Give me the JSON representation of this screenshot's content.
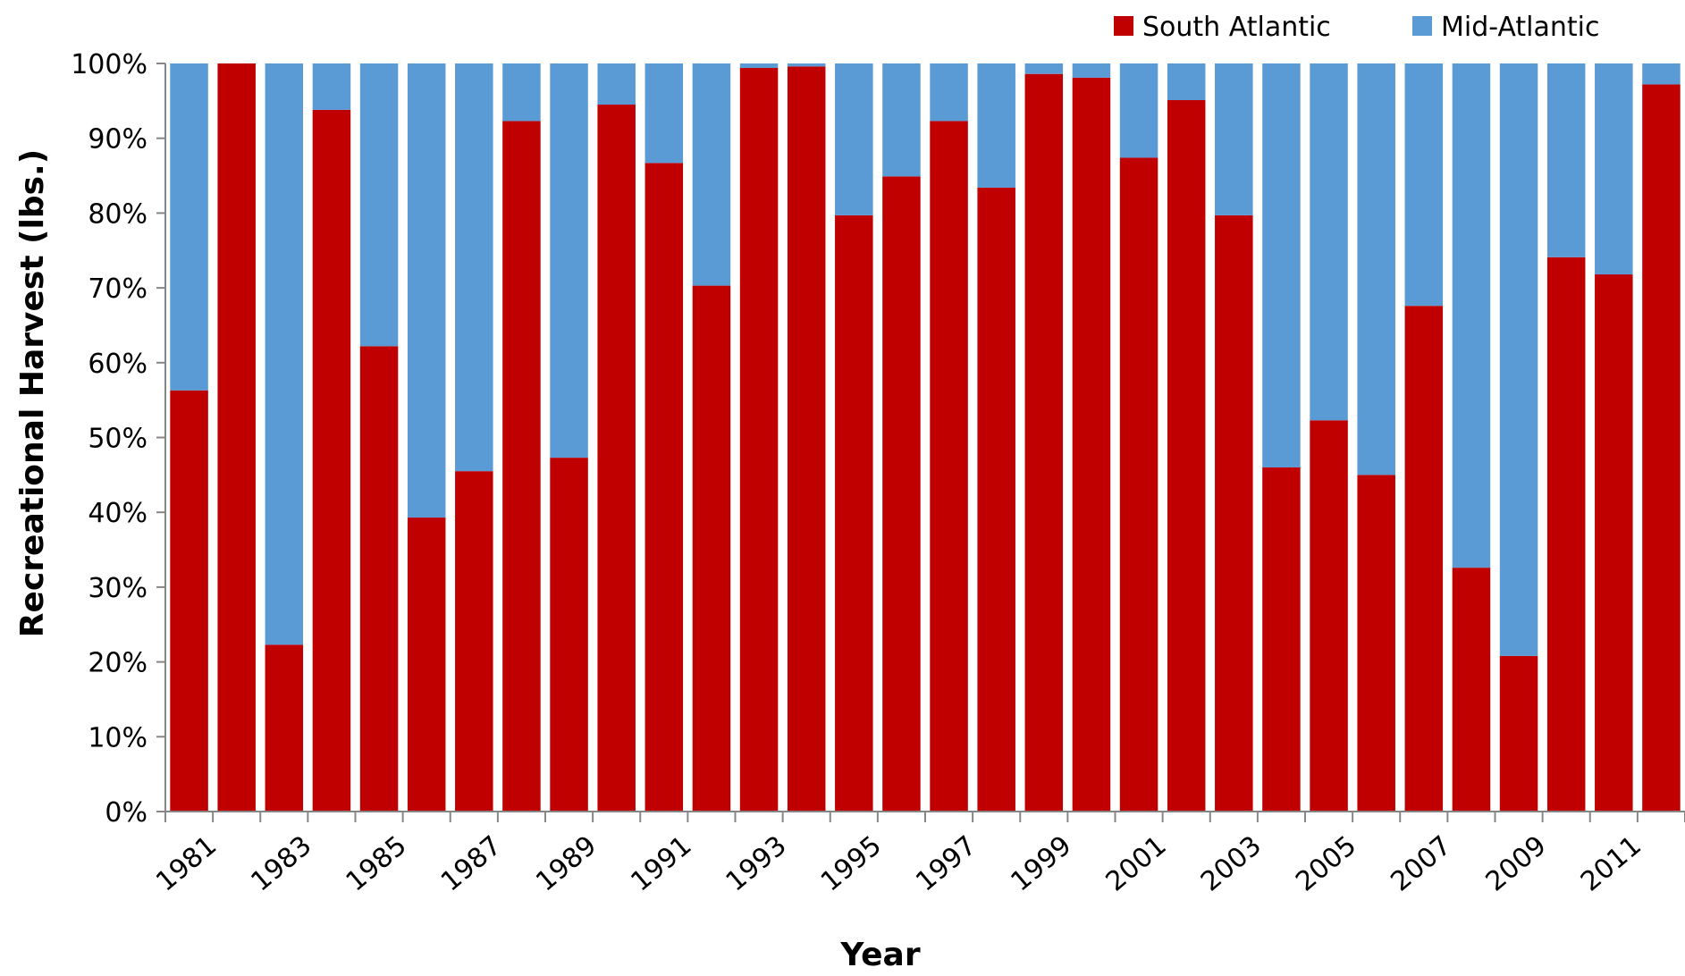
{
  "chart_data": {
    "type": "bar",
    "stacked": true,
    "percent": true,
    "title": "",
    "xlabel": "Year",
    "ylabel": "Recreational Harvest (lbs.)",
    "ylim": [
      0,
      100
    ],
    "y_ticks": [
      "0%",
      "10%",
      "20%",
      "30%",
      "40%",
      "50%",
      "60%",
      "70%",
      "80%",
      "90%",
      "100%"
    ],
    "x_tick_labels": [
      "1981",
      "1983",
      "1985",
      "1987",
      "1989",
      "1991",
      "1993",
      "1995",
      "1997",
      "1999",
      "2001",
      "2003",
      "2005",
      "2007",
      "2009",
      "2011"
    ],
    "grid": false,
    "legend_position": "top-right",
    "categories": [
      "1981",
      "1982",
      "1983",
      "1984",
      "1985",
      "1986",
      "1987",
      "1988",
      "1989",
      "1990",
      "1991",
      "1992",
      "1993",
      "1994",
      "1995",
      "1996",
      "1997",
      "1998",
      "1999",
      "2000",
      "2001",
      "2002",
      "2003",
      "2004",
      "2005",
      "2006",
      "2007",
      "2008",
      "2009",
      "2010",
      "2011",
      "2012"
    ],
    "series": [
      {
        "name": "South Atlantic",
        "color": "#C00000",
        "values": [
          56.3,
          100,
          22.3,
          93.8,
          62.2,
          39.3,
          45.5,
          92.3,
          47.3,
          94.5,
          86.7,
          70.3,
          99.4,
          99.6,
          79.7,
          84.9,
          92.3,
          83.4,
          98.6,
          98.1,
          87.4,
          95.1,
          79.7,
          46.0,
          52.3,
          45.0,
          67.6,
          32.6,
          20.8,
          74.1,
          71.8,
          97.2
        ]
      },
      {
        "name": "Mid-Atlantic",
        "color": "#5B9BD5",
        "values": [
          43.7,
          0,
          77.7,
          6.2,
          37.8,
          60.7,
          54.5,
          7.7,
          52.7,
          5.5,
          13.3,
          29.7,
          0.6,
          0.4,
          20.3,
          15.1,
          7.7,
          16.6,
          1.4,
          1.9,
          12.6,
          4.9,
          20.3,
          54.0,
          47.7,
          55.0,
          32.4,
          67.4,
          79.2,
          25.9,
          28.2,
          2.8
        ]
      }
    ]
  }
}
